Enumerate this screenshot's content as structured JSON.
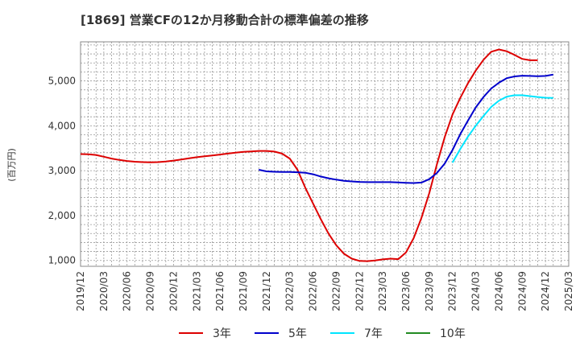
{
  "chart_data": {
    "type": "line",
    "title": "[1869]  営業CFの12か月移動合計の標準偏差の推移",
    "ylabel": "(百万円)",
    "xlabel": "",
    "ylim": [
      870,
      5870
    ],
    "y_ticks": [
      1000,
      2000,
      3000,
      4000,
      5000
    ],
    "y_tick_labels": [
      "1,000",
      "2,000",
      "3,000",
      "4,000",
      "5,000"
    ],
    "x_tick_labels": [
      "2019/12",
      "2020/03",
      "2020/06",
      "2020/09",
      "2020/12",
      "2021/03",
      "2021/06",
      "2021/09",
      "2021/12",
      "2022/03",
      "2022/06",
      "2022/09",
      "2022/12",
      "2023/03",
      "2023/06",
      "2023/09",
      "2023/12",
      "2024/03",
      "2024/06",
      "2024/09",
      "2024/12",
      "2025/03"
    ],
    "x_range": [
      "2019-12",
      "2025-03"
    ],
    "grid": true,
    "legend_position": "bottom",
    "series": [
      {
        "name": "3年",
        "color": "#dd0000",
        "points": [
          [
            "2019-12",
            3370
          ],
          [
            "2020-01",
            3365
          ],
          [
            "2020-02",
            3350
          ],
          [
            "2020-03",
            3310
          ],
          [
            "2020-04",
            3270
          ],
          [
            "2020-05",
            3240
          ],
          [
            "2020-06",
            3215
          ],
          [
            "2020-07",
            3200
          ],
          [
            "2020-08",
            3190
          ],
          [
            "2020-09",
            3185
          ],
          [
            "2020-10",
            3190
          ],
          [
            "2020-11",
            3205
          ],
          [
            "2020-12",
            3225
          ],
          [
            "2021-01",
            3250
          ],
          [
            "2021-02",
            3275
          ],
          [
            "2021-03",
            3300
          ],
          [
            "2021-04",
            3320
          ],
          [
            "2021-05",
            3340
          ],
          [
            "2021-06",
            3360
          ],
          [
            "2021-07",
            3380
          ],
          [
            "2021-08",
            3400
          ],
          [
            "2021-09",
            3420
          ],
          [
            "2021-10",
            3430
          ],
          [
            "2021-11",
            3440
          ],
          [
            "2021-12",
            3440
          ],
          [
            "2022-01",
            3425
          ],
          [
            "2022-02",
            3380
          ],
          [
            "2022-03",
            3270
          ],
          [
            "2022-04",
            3020
          ],
          [
            "2022-05",
            2620
          ],
          [
            "2022-06",
            2270
          ],
          [
            "2022-07",
            1920
          ],
          [
            "2022-08",
            1600
          ],
          [
            "2022-09",
            1340
          ],
          [
            "2022-10",
            1150
          ],
          [
            "2022-11",
            1040
          ],
          [
            "2022-12",
            990
          ],
          [
            "2023-01",
            985
          ],
          [
            "2023-02",
            1000
          ],
          [
            "2023-03",
            1025
          ],
          [
            "2023-04",
            1040
          ],
          [
            "2023-05",
            1030
          ],
          [
            "2023-06",
            1180
          ],
          [
            "2023-07",
            1500
          ],
          [
            "2023-08",
            1950
          ],
          [
            "2023-09",
            2500
          ],
          [
            "2023-10",
            3150
          ],
          [
            "2023-11",
            3750
          ],
          [
            "2023-12",
            4250
          ],
          [
            "2024-01",
            4620
          ],
          [
            "2024-02",
            4950
          ],
          [
            "2024-03",
            5230
          ],
          [
            "2024-04",
            5470
          ],
          [
            "2024-05",
            5650
          ],
          [
            "2024-06",
            5700
          ],
          [
            "2024-07",
            5660
          ],
          [
            "2024-08",
            5580
          ],
          [
            "2024-09",
            5490
          ],
          [
            "2024-10",
            5460
          ],
          [
            "2024-11",
            5460
          ]
        ]
      },
      {
        "name": "5年",
        "color": "#0000cc",
        "points": [
          [
            "2021-11",
            3020
          ],
          [
            "2021-12",
            2985
          ],
          [
            "2022-01",
            2975
          ],
          [
            "2022-02",
            2970
          ],
          [
            "2022-03",
            2970
          ],
          [
            "2022-04",
            2965
          ],
          [
            "2022-05",
            2955
          ],
          [
            "2022-06",
            2920
          ],
          [
            "2022-07",
            2870
          ],
          [
            "2022-08",
            2830
          ],
          [
            "2022-09",
            2800
          ],
          [
            "2022-10",
            2775
          ],
          [
            "2022-11",
            2760
          ],
          [
            "2022-12",
            2750
          ],
          [
            "2023-01",
            2745
          ],
          [
            "2023-02",
            2745
          ],
          [
            "2023-03",
            2745
          ],
          [
            "2023-04",
            2745
          ],
          [
            "2023-05",
            2740
          ],
          [
            "2023-06",
            2730
          ],
          [
            "2023-07",
            2725
          ],
          [
            "2023-08",
            2735
          ],
          [
            "2023-09",
            2810
          ],
          [
            "2023-10",
            2950
          ],
          [
            "2023-11",
            3160
          ],
          [
            "2023-12",
            3460
          ],
          [
            "2024-01",
            3810
          ],
          [
            "2024-02",
            4120
          ],
          [
            "2024-03",
            4410
          ],
          [
            "2024-04",
            4640
          ],
          [
            "2024-05",
            4830
          ],
          [
            "2024-06",
            4960
          ],
          [
            "2024-07",
            5060
          ],
          [
            "2024-08",
            5100
          ],
          [
            "2024-09",
            5115
          ],
          [
            "2024-10",
            5110
          ],
          [
            "2024-11",
            5105
          ],
          [
            "2024-12",
            5110
          ],
          [
            "2025-01",
            5140
          ]
        ]
      },
      {
        "name": "7年",
        "color": "#00e5ff",
        "points": [
          [
            "2023-12",
            3180
          ],
          [
            "2024-01",
            3480
          ],
          [
            "2024-02",
            3760
          ],
          [
            "2024-03",
            4000
          ],
          [
            "2024-04",
            4220
          ],
          [
            "2024-05",
            4420
          ],
          [
            "2024-06",
            4560
          ],
          [
            "2024-07",
            4650
          ],
          [
            "2024-08",
            4680
          ],
          [
            "2024-09",
            4680
          ],
          [
            "2024-10",
            4660
          ],
          [
            "2024-11",
            4640
          ],
          [
            "2024-12",
            4625
          ],
          [
            "2025-01",
            4620
          ]
        ]
      },
      {
        "name": "10年",
        "color": "#228b22",
        "points": []
      }
    ]
  }
}
